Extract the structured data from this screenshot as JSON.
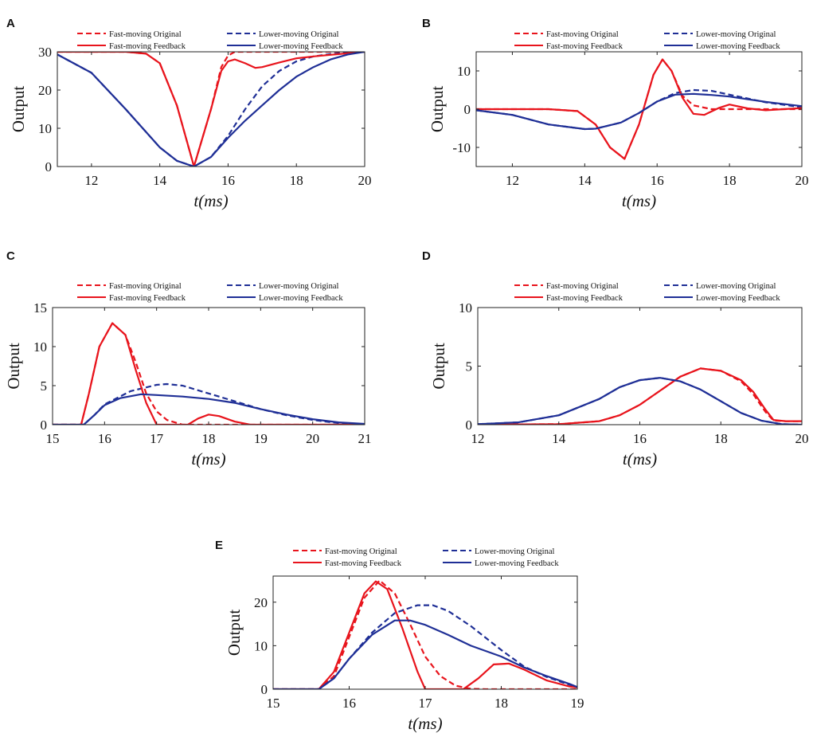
{
  "figure": {
    "colors": {
      "fast": "#e8141c",
      "lower": "#1f2f96"
    }
  },
  "chart_data": [
    {
      "panel": "A",
      "type": "line",
      "xlabel": "t(ms)",
      "ylabel": "Output",
      "xlim": [
        11,
        20
      ],
      "ylim": [
        0,
        30
      ],
      "xticks": [
        12,
        14,
        16,
        18,
        20
      ],
      "yticks": [
        0,
        10,
        20,
        30
      ],
      "legend": [
        "Fast-moving Original",
        "Lower-moving Original",
        "Fast-moving Feedback",
        "Lower-moving Feedback"
      ],
      "series": [
        {
          "name": "Fast-moving Original",
          "color": "#e8141c",
          "dash": true,
          "x": [
            11,
            13,
            13.6,
            14,
            14.5,
            15,
            15.5,
            15.8,
            16,
            16.2,
            16.5,
            17,
            20
          ],
          "y": [
            30,
            30,
            29.5,
            27,
            16,
            0,
            15,
            26,
            29,
            30,
            30,
            30,
            30
          ]
        },
        {
          "name": "Lower-moving Original",
          "color": "#1f2f96",
          "dash": true,
          "x": [
            11,
            12,
            13,
            14,
            14.5,
            15,
            15.5,
            16,
            16.5,
            17,
            17.5,
            18,
            18.5,
            19,
            19.5,
            20
          ],
          "y": [
            29.3,
            24.5,
            15,
            5,
            1.5,
            0,
            2.5,
            8,
            15,
            21,
            25,
            27.5,
            28.8,
            29.4,
            29.8,
            30
          ]
        },
        {
          "name": "Fast-moving Feedback",
          "color": "#e8141c",
          "dash": false,
          "x": [
            11,
            13,
            13.6,
            14,
            14.5,
            15,
            15.5,
            15.8,
            16,
            16.2,
            16.5,
            16.8,
            17,
            17.5,
            18,
            18.5,
            19,
            19.5,
            20
          ],
          "y": [
            30,
            30,
            29.5,
            27,
            16,
            0,
            15,
            25,
            27.5,
            28,
            27,
            25.8,
            26,
            27.2,
            28.3,
            28.8,
            29.2,
            29.6,
            30
          ]
        },
        {
          "name": "Lower-moving Feedback",
          "color": "#1f2f96",
          "dash": false,
          "x": [
            11,
            12,
            13,
            14,
            14.5,
            15,
            15.5,
            16,
            16.5,
            17,
            17.5,
            18,
            18.5,
            19,
            19.5,
            20
          ],
          "y": [
            29.3,
            24.5,
            15,
            5,
            1.5,
            0,
            2.5,
            7.5,
            12,
            16,
            20,
            23.5,
            26,
            28,
            29.3,
            30
          ]
        }
      ]
    },
    {
      "panel": "B",
      "type": "line",
      "xlabel": "t(ms)",
      "ylabel": "Output",
      "xlim": [
        11,
        20
      ],
      "ylim": [
        -15,
        15
      ],
      "xticks": [
        12,
        14,
        16,
        18,
        20
      ],
      "yticks": [
        -10,
        0,
        10
      ],
      "legend": [
        "Fast-moving Original",
        "Lower-moving Original",
        "Fast-moving Feedback",
        "Lower-moving Feedback"
      ],
      "series": [
        {
          "name": "Fast-moving Original",
          "color": "#e8141c",
          "dash": true,
          "x": [
            11,
            13,
            13.8,
            14.3,
            14.7,
            15.1,
            15.5,
            15.9,
            16.15,
            16.4,
            16.7,
            17,
            17.5,
            18,
            20
          ],
          "y": [
            0,
            0,
            -0.5,
            -4,
            -10,
            -13,
            -4,
            9,
            13,
            10,
            3.5,
            1,
            0,
            0,
            0
          ]
        },
        {
          "name": "Lower-moving Original",
          "color": "#1f2f96",
          "dash": true,
          "x": [
            11,
            12,
            13,
            14,
            14.3,
            15,
            15.5,
            16,
            16.5,
            17,
            17.5,
            18,
            18.5,
            19,
            20
          ],
          "y": [
            -0.3,
            -1.5,
            -4,
            -5.2,
            -5.1,
            -3.5,
            -1,
            2,
            4.2,
            5,
            4.8,
            3.8,
            2.8,
            1.8,
            0.5
          ]
        },
        {
          "name": "Fast-moving Feedback",
          "color": "#e8141c",
          "dash": false,
          "x": [
            11,
            13,
            13.8,
            14.3,
            14.7,
            15.1,
            15.5,
            15.9,
            16.15,
            16.4,
            16.7,
            17,
            17.3,
            17.7,
            18,
            18.5,
            19,
            20
          ],
          "y": [
            0,
            0,
            -0.5,
            -4,
            -10,
            -13,
            -4,
            9,
            13,
            10,
            3,
            -1.2,
            -1.5,
            0.3,
            1.2,
            0.2,
            -0.3,
            0.3
          ]
        },
        {
          "name": "Lower-moving Feedback",
          "color": "#1f2f96",
          "dash": false,
          "x": [
            11,
            12,
            13,
            14,
            14.3,
            15,
            15.5,
            16,
            16.5,
            17,
            17.5,
            18,
            18.5,
            19,
            20
          ],
          "y": [
            -0.3,
            -1.5,
            -4,
            -5.2,
            -5.1,
            -3.5,
            -1,
            2,
            3.8,
            4,
            3.7,
            3.3,
            2.6,
            1.9,
            0.8
          ]
        }
      ]
    },
    {
      "panel": "C",
      "type": "line",
      "xlabel": "t(ms)",
      "ylabel": "Output",
      "xlim": [
        15,
        21
      ],
      "ylim": [
        0,
        15
      ],
      "xticks": [
        15,
        16,
        17,
        18,
        19,
        20,
        21
      ],
      "yticks": [
        0,
        5,
        10,
        15
      ],
      "legend": [
        "Fast-moving Original",
        "Lower-moving Original",
        "Fast-moving Feedback",
        "Lower-moving Feedback"
      ],
      "series": [
        {
          "name": "Fast-moving Original",
          "color": "#e8141c",
          "dash": true,
          "x": [
            15,
            15.55,
            15.7,
            15.9,
            16.15,
            16.4,
            16.6,
            16.8,
            17,
            17.2,
            17.5,
            18,
            21
          ],
          "y": [
            0,
            0,
            4,
            10,
            13,
            11.5,
            8,
            4,
            1.7,
            0.6,
            0,
            0,
            0
          ]
        },
        {
          "name": "Lower-moving Original",
          "color": "#1f2f96",
          "dash": true,
          "x": [
            15,
            15.6,
            15.8,
            16,
            16.5,
            17,
            17.2,
            17.5,
            18,
            18.5,
            19,
            19.5,
            20,
            20.5,
            21
          ],
          "y": [
            0,
            0,
            1.2,
            2.6,
            4.3,
            5.1,
            5.2,
            5.0,
            4.0,
            3.0,
            2.0,
            1.2,
            0.6,
            0.2,
            0
          ]
        },
        {
          "name": "Fast-moving Feedback",
          "color": "#e8141c",
          "dash": false,
          "x": [
            15,
            15.55,
            15.7,
            15.9,
            16.15,
            16.4,
            16.6,
            16.8,
            17,
            17.3,
            17.6,
            17.8,
            18,
            18.2,
            18.5,
            18.8,
            19.2,
            21
          ],
          "y": [
            0,
            0,
            4,
            10,
            13,
            11.5,
            7,
            2.8,
            0,
            0,
            0,
            0.8,
            1.3,
            1.1,
            0.4,
            0,
            0,
            0
          ]
        },
        {
          "name": "Lower-moving Feedback",
          "color": "#1f2f96",
          "dash": false,
          "x": [
            15,
            15.6,
            15.8,
            16,
            16.3,
            16.7,
            17,
            17.5,
            18,
            18.5,
            19,
            19.5,
            20,
            20.5,
            21
          ],
          "y": [
            0,
            0,
            1.2,
            2.5,
            3.4,
            3.9,
            3.8,
            3.6,
            3.3,
            2.8,
            2.0,
            1.3,
            0.7,
            0.3,
            0.1
          ]
        }
      ]
    },
    {
      "panel": "D",
      "type": "line",
      "xlabel": "t(ms)",
      "ylabel": "Output",
      "xlim": [
        12,
        20
      ],
      "ylim": [
        0,
        10
      ],
      "xticks": [
        12,
        14,
        16,
        18,
        20
      ],
      "yticks": [
        0,
        5,
        10
      ],
      "legend": [
        "Fast-moving Original",
        "Lower-moving Original",
        "Fast-moving Feedback",
        "Lower-moving Feedback"
      ],
      "series": [
        {
          "name": "Fast-moving Original",
          "color": "#e8141c",
          "dash": true,
          "x": [
            12,
            14,
            15,
            15.5,
            16,
            16.5,
            17,
            17.5,
            18,
            18.5,
            18.8,
            19.1,
            19.3,
            19.6,
            20
          ],
          "y": [
            0,
            0.05,
            0.3,
            0.8,
            1.7,
            2.9,
            4.1,
            4.8,
            4.6,
            3.7,
            2.6,
            1.1,
            0.35,
            0.3,
            0.3
          ]
        },
        {
          "name": "Lower-moving Original",
          "color": "#1f2f96",
          "dash": true,
          "x": [
            12,
            13,
            14,
            15,
            15.5,
            16,
            16.5,
            17,
            17.5,
            18,
            18.5,
            19,
            19.5,
            20
          ],
          "y": [
            0.05,
            0.2,
            0.8,
            2.2,
            3.2,
            3.8,
            4.0,
            3.7,
            3.0,
            2.0,
            1.0,
            0.35,
            0.05,
            0
          ]
        },
        {
          "name": "Fast-moving Feedback",
          "color": "#e8141c",
          "dash": false,
          "x": [
            12,
            14,
            15,
            15.5,
            16,
            16.5,
            17,
            17.5,
            18,
            18.5,
            18.8,
            19.1,
            19.3,
            19.6,
            20
          ],
          "y": [
            0,
            0.05,
            0.3,
            0.8,
            1.7,
            2.9,
            4.1,
            4.8,
            4.6,
            3.8,
            2.8,
            1.3,
            0.4,
            0.3,
            0.3
          ]
        },
        {
          "name": "Lower-moving Feedback",
          "color": "#1f2f96",
          "dash": false,
          "x": [
            12,
            13,
            14,
            15,
            15.5,
            16,
            16.5,
            17,
            17.5,
            18,
            18.5,
            19,
            19.5,
            20
          ],
          "y": [
            0.05,
            0.2,
            0.8,
            2.2,
            3.2,
            3.8,
            4.0,
            3.7,
            3.0,
            2.0,
            1.0,
            0.35,
            0.05,
            0
          ]
        }
      ]
    },
    {
      "panel": "E",
      "type": "line",
      "xlabel": "t(ms)",
      "ylabel": "Output",
      "xlim": [
        15,
        19
      ],
      "ylim": [
        0,
        26
      ],
      "xticks": [
        15,
        16,
        17,
        18,
        19
      ],
      "yticks": [
        0,
        10,
        20
      ],
      "legend": [
        "Fast-moving Original",
        "Lower-moving Original",
        "Fast-moving Feedback",
        "Lower-moving Feedback"
      ],
      "series": [
        {
          "name": "Fast-moving Original",
          "color": "#e8141c",
          "dash": true,
          "x": [
            15,
            15.6,
            15.8,
            16,
            16.2,
            16.4,
            16.6,
            16.8,
            17,
            17.2,
            17.4,
            17.6,
            17.8,
            19
          ],
          "y": [
            0,
            0,
            3,
            12,
            21,
            25,
            22,
            15,
            7.5,
            3,
            0.8,
            0.1,
            0,
            0
          ]
        },
        {
          "name": "Lower-moving Original",
          "color": "#1f2f96",
          "dash": true,
          "x": [
            15,
            15.6,
            15.8,
            16,
            16.3,
            16.6,
            16.9,
            17.1,
            17.3,
            17.6,
            18,
            18.3,
            18.6,
            18.9,
            19
          ],
          "y": [
            0,
            0,
            2.5,
            7,
            13,
            17.5,
            19.3,
            19.3,
            18,
            14.5,
            9,
            5.2,
            2.8,
            1,
            0.5
          ]
        },
        {
          "name": "Fast-moving Feedback",
          "color": "#e8141c",
          "dash": false,
          "x": [
            15,
            15.6,
            15.8,
            16,
            16.2,
            16.35,
            16.5,
            16.7,
            16.9,
            17,
            17.5,
            17.7,
            17.9,
            18.1,
            18.3,
            18.6,
            18.9,
            19
          ],
          "y": [
            0,
            0,
            4,
            13,
            22,
            24.8,
            23,
            14,
            4,
            0,
            0,
            2.5,
            5.7,
            5.9,
            4.5,
            2,
            0.6,
            0.4
          ]
        },
        {
          "name": "Lower-moving Feedback",
          "color": "#1f2f96",
          "dash": false,
          "x": [
            15,
            15.6,
            15.8,
            16,
            16.3,
            16.6,
            16.8,
            17,
            17.3,
            17.6,
            18,
            18.3,
            18.6,
            18.9,
            19
          ],
          "y": [
            0,
            0,
            2.5,
            7,
            12.5,
            15.8,
            15.8,
            14.8,
            12.5,
            10,
            7.5,
            5,
            3,
            1.2,
            0.5
          ]
        }
      ]
    }
  ]
}
